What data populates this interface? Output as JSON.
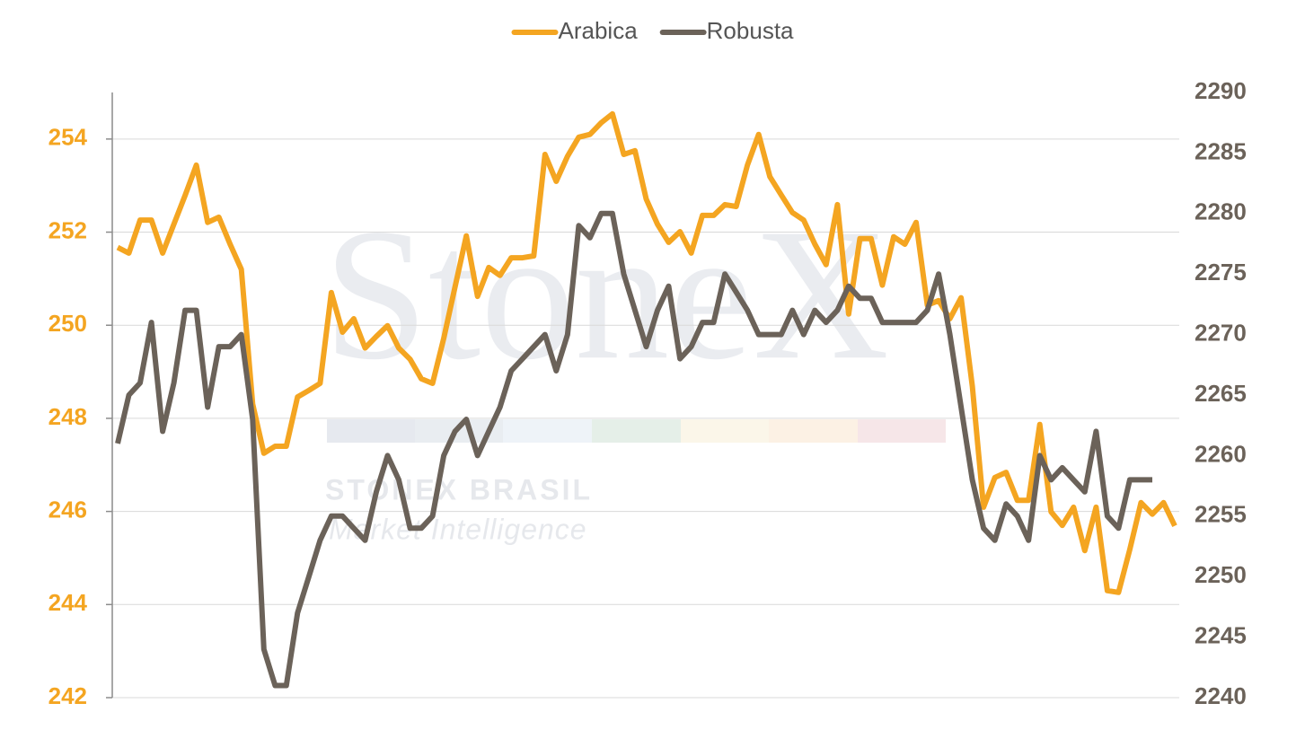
{
  "chart_data": {
    "type": "line",
    "watermark": {
      "logo": "StoneX",
      "company": "STONEX BRASIL",
      "tagline": "Market Intelligence"
    },
    "categories": [
      null,
      null,
      null,
      null,
      null,
      null,
      null,
      null,
      null,
      null,
      null,
      null,
      null,
      null,
      null,
      null,
      null,
      null,
      null,
      null,
      null,
      null,
      null,
      null,
      null,
      null,
      null,
      null,
      null,
      null,
      null,
      null,
      null,
      null,
      null,
      null,
      null,
      null,
      null,
      null,
      null,
      null,
      null,
      null,
      null,
      null,
      null,
      null,
      null,
      null,
      null,
      null,
      null,
      null,
      null,
      null,
      null,
      null,
      null,
      null,
      null,
      null,
      null,
      null,
      null,
      null,
      null,
      null,
      null,
      null,
      null,
      null,
      null,
      null,
      null,
      null,
      null,
      null,
      null,
      null,
      null,
      null,
      null,
      null,
      null,
      null,
      null,
      null,
      null,
      null,
      null,
      null,
      null,
      null,
      null
    ],
    "ylim": [
      242,
      255
    ],
    "yticks": [
      242,
      244,
      246,
      248,
      250,
      252,
      254
    ],
    "y2lim": [
      2240,
      2290
    ],
    "y2ticks": [
      2240,
      2245,
      2250,
      2255,
      2260,
      2265,
      2270,
      2275,
      2280,
      2285,
      2290
    ],
    "grid": true,
    "legend": "top",
    "series": [
      {
        "name": "Arabica",
        "color": "#f4a521",
        "axis": "y",
        "values": [
          251.67,
          251.55,
          252.26,
          252.26,
          251.55,
          252.17,
          252.79,
          253.44,
          252.21,
          252.32,
          251.74,
          251.2,
          248.31,
          247.25,
          247.4,
          247.4,
          248.46,
          248.6,
          248.75,
          250.7,
          249.85,
          250.14,
          249.51,
          249.76,
          249.99,
          249.51,
          249.27,
          248.85,
          248.75,
          249.72,
          250.82,
          251.92,
          250.62,
          251.24,
          251.07,
          251.45,
          251.45,
          251.49,
          253.67,
          253.09,
          253.63,
          254.04,
          254.1,
          254.35,
          254.54,
          253.67,
          253.75,
          252.71,
          252.17,
          251.78,
          252.01,
          251.55,
          252.36,
          252.36,
          252.59,
          252.55,
          253.44,
          254.1,
          253.19,
          252.8,
          252.42,
          252.26,
          251.74,
          251.3,
          252.59,
          250.24,
          251.86,
          251.86,
          250.86,
          251.9,
          251.74,
          252.21,
          250.43,
          250.53,
          250.14,
          250.59,
          248.69,
          246.09,
          246.73,
          246.84,
          246.24,
          246.24,
          247.87,
          245.99,
          245.7,
          246.09,
          245.16,
          246.09,
          244.3,
          244.26,
          245.18,
          246.19,
          245.94,
          246.19,
          245.69
        ]
      },
      {
        "name": "Robusta",
        "color": "#6b6259",
        "axis": "y2",
        "values": [
          2261,
          2265,
          2266,
          2271,
          2262,
          2266,
          2272,
          2272,
          2264,
          2269,
          2269,
          2270,
          2263,
          2244,
          2241,
          2241,
          2247,
          2250,
          2253,
          2255,
          2255,
          2254,
          2253,
          2257,
          2260,
          2258,
          2254,
          2254,
          2255,
          2260,
          2262,
          2263,
          2260,
          2262,
          2264,
          2267,
          2268,
          2269,
          2270,
          2267,
          2270,
          2279,
          2278,
          2280,
          2280,
          2275,
          2272,
          2269,
          2272,
          2274,
          2268,
          2269,
          2271,
          2271,
          2275,
          2273.5,
          2272,
          2270,
          2270,
          2270,
          2272,
          2270,
          2272,
          2271,
          2272,
          2274,
          2273,
          2273,
          2271,
          2271,
          2271,
          2271,
          2272,
          2275,
          2270,
          2264,
          2258,
          2254,
          2253,
          2256,
          2255,
          2253,
          2260,
          2258,
          2259,
          2258,
          2257,
          2262,
          2255,
          2254,
          2258,
          2258,
          2258,
          null,
          null
        ]
      }
    ]
  }
}
